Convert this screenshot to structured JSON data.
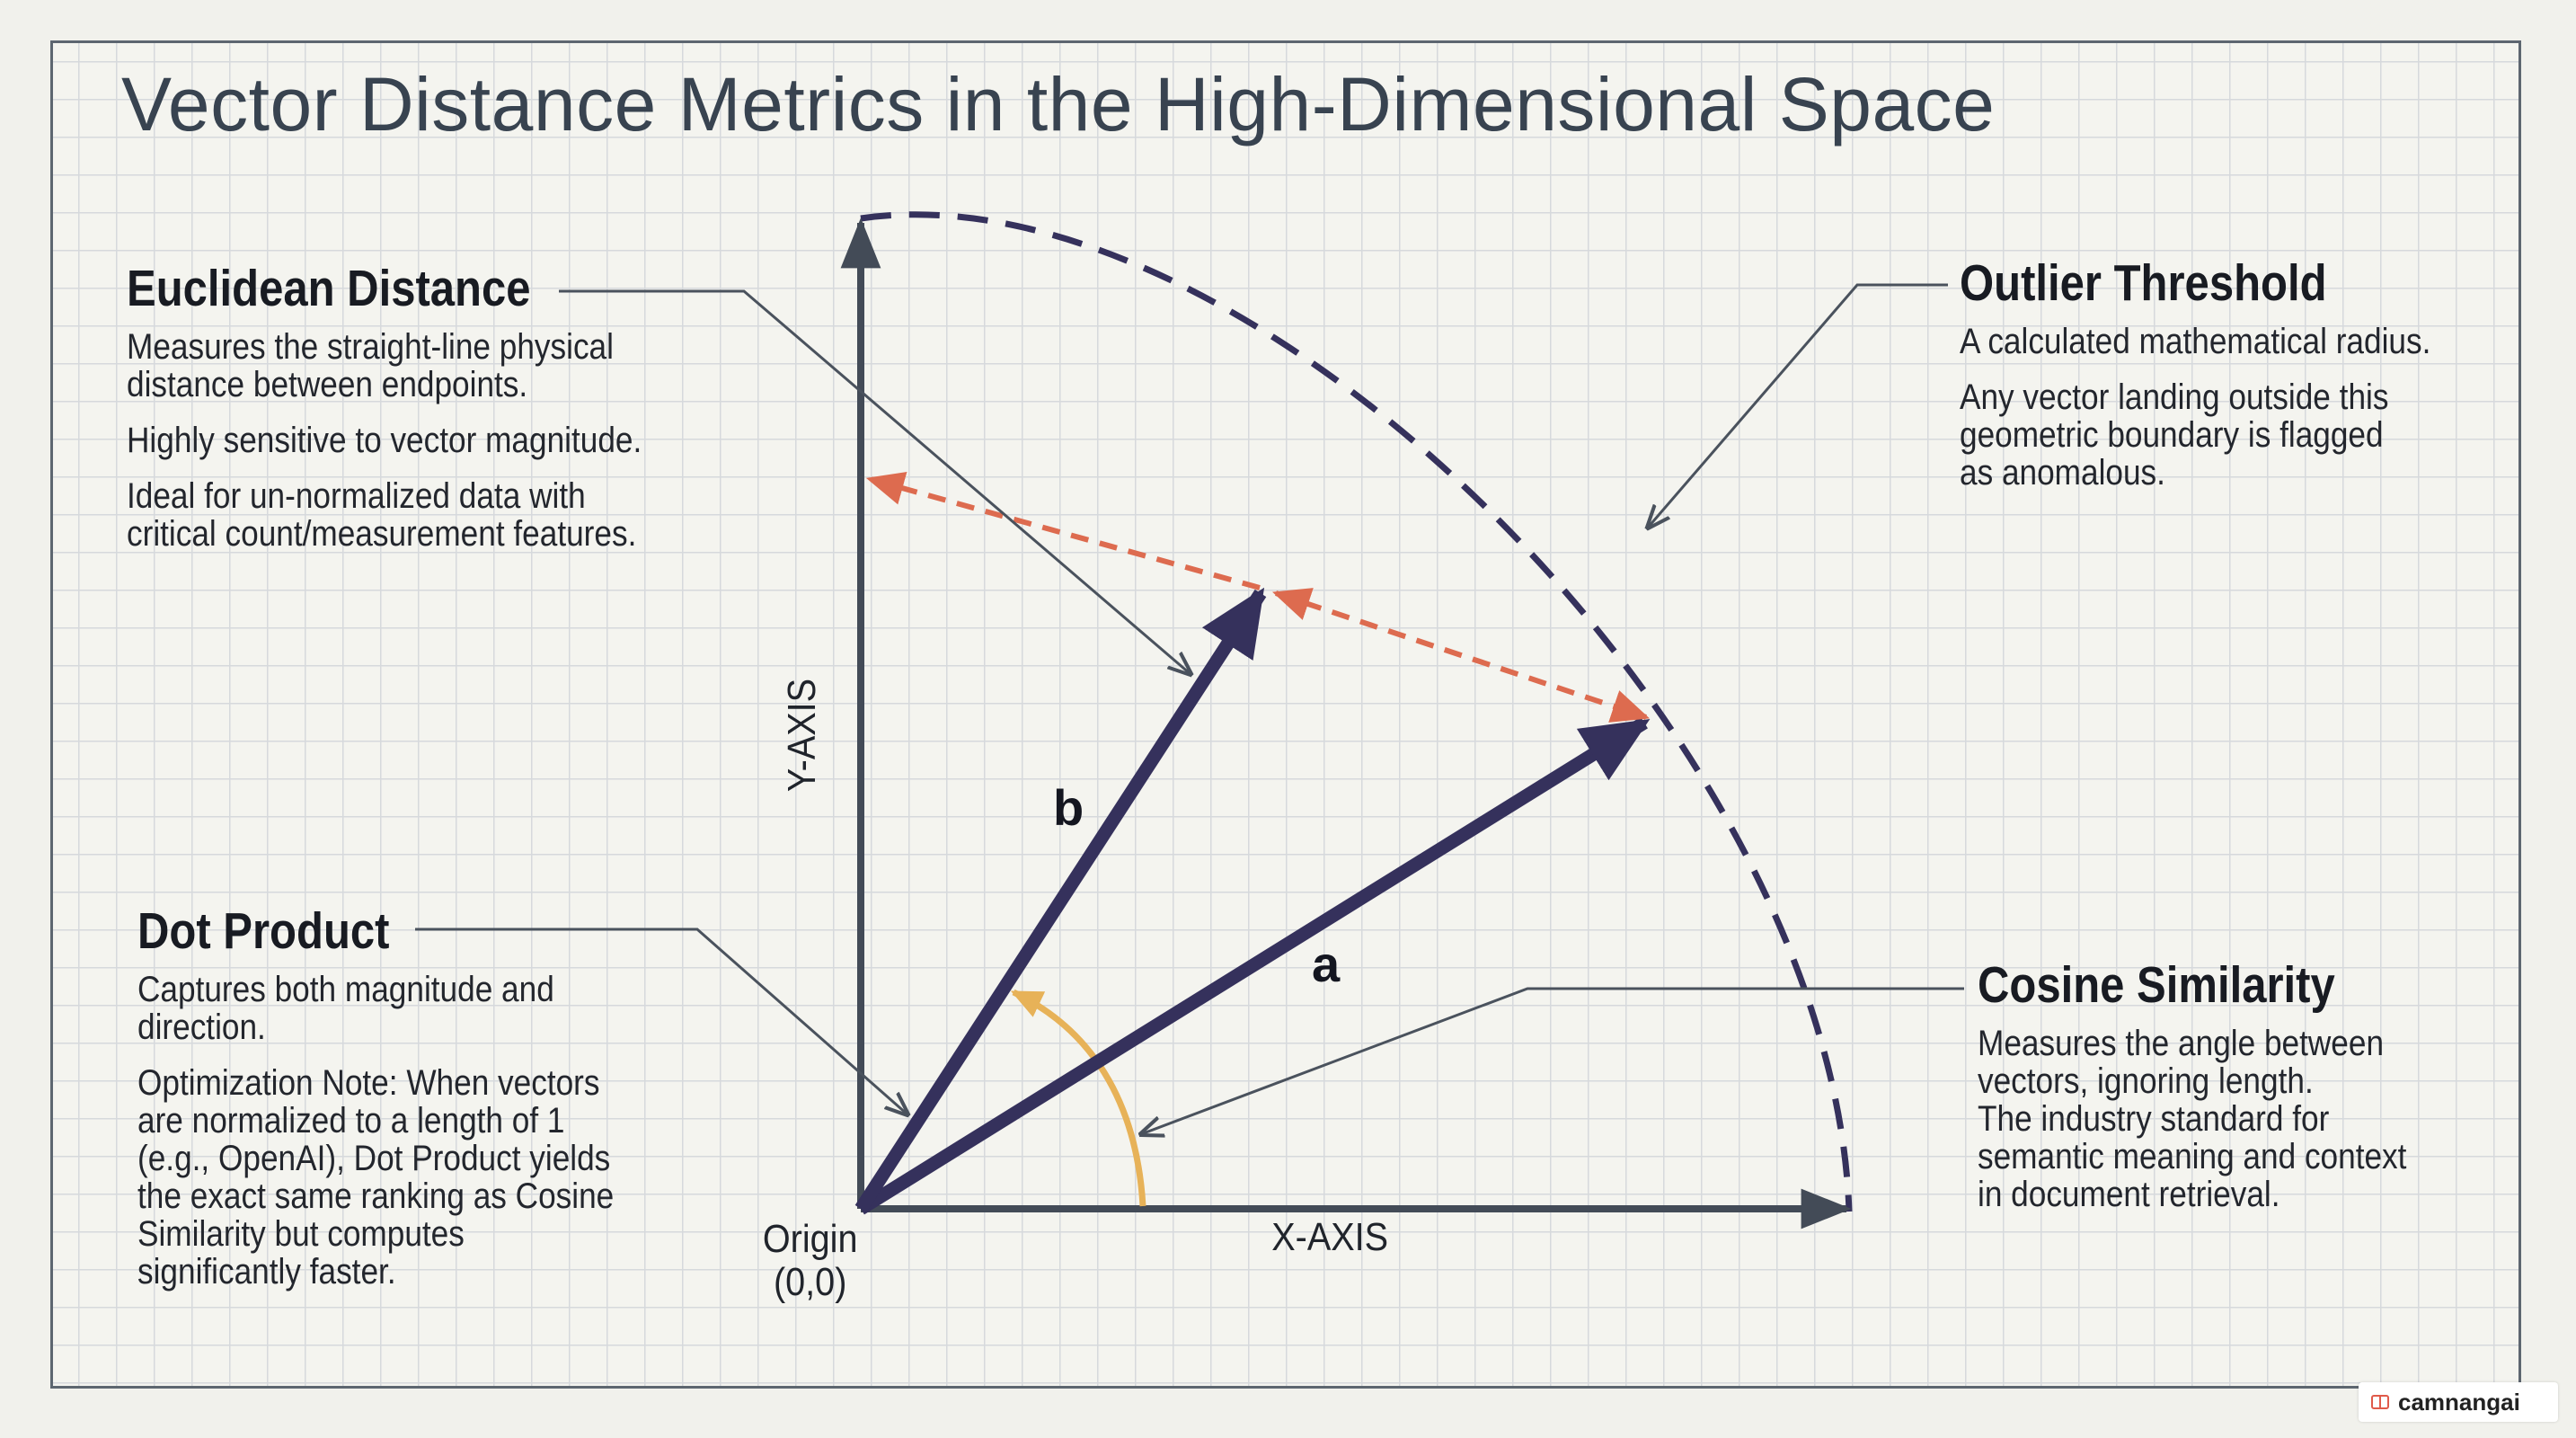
{
  "title": "Vector Distance Metrics in the High-Dimensional Space",
  "callouts": {
    "euclidean": {
      "heading": "Euclidean Distance",
      "paragraphs": [
        "Measures the straight-line physical\ndistance between endpoints.",
        "Highly sensitive to vector magnitude.",
        "Ideal for un-normalized data with\ncritical count/measurement features."
      ]
    },
    "outlier": {
      "heading": "Outlier Threshold",
      "paragraphs": [
        "A calculated mathematical radius.",
        "Any vector landing outside this\ngeometric boundary is flagged\nas anomalous."
      ]
    },
    "dot": {
      "heading": "Dot Product",
      "paragraphs": [
        "Captures both magnitude and\ndirection.",
        "Optimization Note: When vectors\nare normalized to a length of 1\n(e.g., OpenAI), Dot Product yields\nthe exact same ranking as Cosine\nSimilarity but computes\nsignificantly faster."
      ]
    },
    "cosine": {
      "heading": "Cosine Similarity",
      "paragraphs": [
        "Measures the angle between\nvectors, ignoring length.",
        "The industry standard for\nsemantic meaning and context\nin document retrieval."
      ]
    }
  },
  "axes": {
    "y_label": "Y-AXIS",
    "x_label": "X-AXIS",
    "origin_label": "Origin\n(0,0)"
  },
  "vectors": {
    "a_label": "a",
    "b_label": "b"
  },
  "colors": {
    "vector": "#35315c",
    "distance": "#dd6b4f",
    "angle": "#e7b258",
    "axis": "#434b57",
    "boundary": "#35315c",
    "leader": "#4a525d"
  },
  "watermark": "camnangai"
}
